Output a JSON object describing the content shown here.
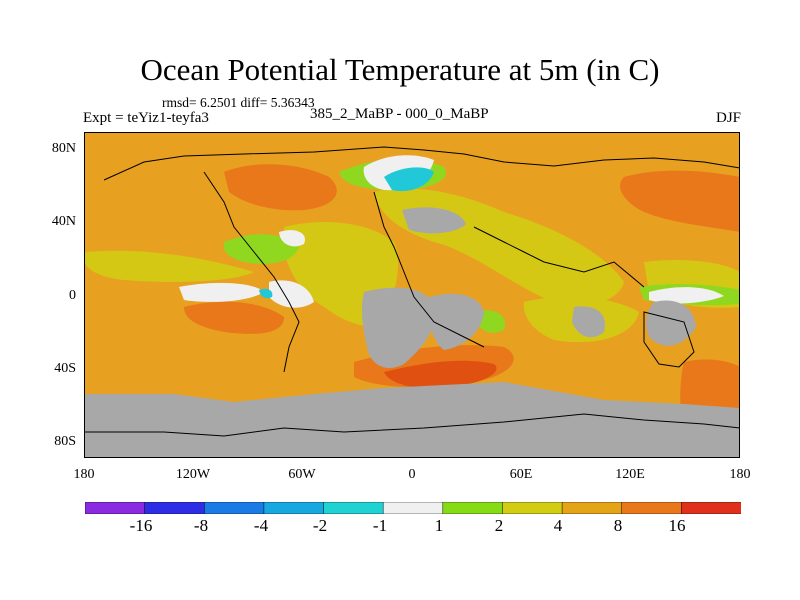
{
  "title": "Ocean Potential Temperature at 5m (in C)",
  "stats": "rmsd= 6.2501 diff= 5.36343",
  "expt_label": "Expt = teYiz1-teyfa3",
  "comparison_label": "385_2_MaBP - 000_0_MaBP",
  "season_label": "DJF",
  "lat_labels": [
    "80N",
    "40N",
    "0",
    "40S",
    "80S"
  ],
  "lon_labels": [
    "180",
    "120W",
    "60W",
    "0",
    "60E",
    "120E",
    "180"
  ],
  "colorbar": {
    "colors": [
      "#8a2be2",
      "#2d2de6",
      "#1a7ae6",
      "#18a8e0",
      "#20d2d2",
      "#f0f0f0",
      "#86dc14",
      "#d2cc12",
      "#e4a418",
      "#e8781a",
      "#e0301a"
    ],
    "labels": [
      "-16",
      "-8",
      "-4",
      "-2",
      "-1",
      "1",
      "2",
      "4",
      "8",
      "16"
    ]
  },
  "colors": {
    "orange": "#e8a020",
    "dark_orange": "#e8781a",
    "red_orange": "#e05010",
    "yellow": "#d4c814",
    "green": "#90d820",
    "white": "#f0f0f0",
    "cyan": "#20c8d8",
    "gray": "#a8a8a8"
  }
}
